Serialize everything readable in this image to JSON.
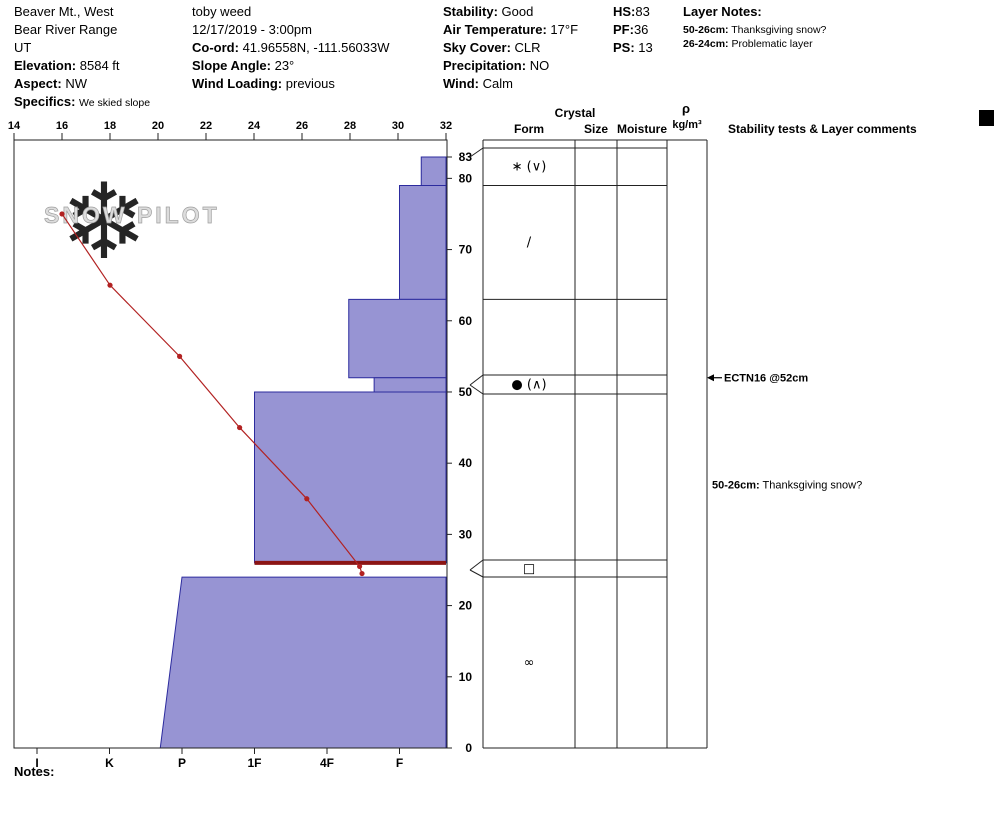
{
  "header": {
    "location": {
      "name": "Beaver Mt., West",
      "range": "Bear River Range",
      "state": "UT",
      "elevation_label": "Elevation:",
      "elevation_value": "8584 ft",
      "aspect_label": "Aspect:",
      "aspect_value": "NW",
      "specifics_label": "Specifics:",
      "specifics_value": "We skied slope"
    },
    "observation": {
      "observer": "toby weed",
      "datetime": "12/17/2019 - 3:00pm",
      "coord_label": "Co-ord:",
      "coord_value": "41.96558N, -111.56033W",
      "slope_angle_label": "Slope Angle:",
      "slope_angle_value": "23°",
      "wind_loading_label": "Wind Loading:",
      "wind_loading_value": "previous"
    },
    "conditions": {
      "stability_label": "Stability:",
      "stability_value": "Good",
      "air_temp_label": "Air Temperature:",
      "air_temp_value": "17°F",
      "sky_label": "Sky Cover:",
      "sky_value": "CLR",
      "precip_label": "Precipitation:",
      "precip_value": "NO",
      "wind_label": "Wind:",
      "wind_value": "Calm"
    },
    "summary": {
      "hs_label": "HS:",
      "hs_value": "83",
      "pf_label": "PF:",
      "pf_value": "36",
      "ps_label": "PS:",
      "ps_value": "13"
    },
    "layer_notes": {
      "title": "Layer Notes:",
      "notes": [
        {
          "range": "50-26cm:",
          "text": "Thanksgiving snow?"
        },
        {
          "range": "26-24cm:",
          "text": "Problematic layer"
        }
      ]
    }
  },
  "watermark": {
    "snowflake_glyph": "❄",
    "snowflake_color": "#cbdce8",
    "text": "SNOW PILOT"
  },
  "chart_data": {
    "type": "snow-profile",
    "title": "Snow pit hardness / temperature profile",
    "axes": {
      "temperature_f": {
        "ticks": [
          14,
          16,
          18,
          20,
          22,
          24,
          26,
          28,
          30,
          32
        ],
        "min": 14,
        "max": 32,
        "position": "top",
        "unit": "°F"
      },
      "hardness": {
        "ticks": [
          "I",
          "K",
          "P",
          "1F",
          "4F",
          "F"
        ],
        "position": "bottom"
      },
      "depth_cm": {
        "ticks": [
          83,
          80,
          70,
          60,
          50,
          40,
          30,
          20,
          10,
          0
        ],
        "max": 83,
        "position": "right",
        "unit": "cm"
      }
    },
    "temperature_profile": [
      {
        "temp_f": 16.0,
        "depth_cm": 75
      },
      {
        "temp_f": 18.0,
        "depth_cm": 65
      },
      {
        "temp_f": 20.9,
        "depth_cm": 55
      },
      {
        "temp_f": 23.4,
        "depth_cm": 45
      },
      {
        "temp_f": 26.2,
        "depth_cm": 35
      },
      {
        "temp_f": 28.4,
        "depth_cm": 25.5
      },
      {
        "temp_f": 28.5,
        "depth_cm": 24.5
      }
    ],
    "layers": [
      {
        "top_cm": 83,
        "bottom_cm": 79,
        "hardness": "F-",
        "h_top": 5.3,
        "h_bottom": 5.3,
        "form": "∗ (∨)"
      },
      {
        "top_cm": 79,
        "bottom_cm": 63,
        "hardness": "F",
        "h_top": 5.0,
        "h_bottom": 5.0,
        "form": "/"
      },
      {
        "top_cm": 63,
        "bottom_cm": 52,
        "hardness": "4F-",
        "h_top": 4.3,
        "h_bottom": 4.3,
        "form": ""
      },
      {
        "top_cm": 52,
        "bottom_cm": 50,
        "hardness": "F+",
        "h_top": 4.65,
        "h_bottom": 4.65,
        "form": "● (∧)"
      },
      {
        "top_cm": 50,
        "bottom_cm": 26,
        "hardness": "1F",
        "h_top": 3.0,
        "h_bottom": 3.0,
        "form": ""
      },
      {
        "top_cm": 26,
        "bottom_cm": 24,
        "hardness": "F-",
        "h_top": null,
        "h_bottom": null,
        "form": "□",
        "concern": true
      },
      {
        "top_cm": 24,
        "bottom_cm": 0,
        "hardness": "P",
        "h_top": 2.0,
        "h_bottom": 1.7,
        "form": "∞"
      }
    ],
    "layer_of_concern": {
      "depth_cm": 26,
      "color": "#8b1414"
    },
    "bar_fill": "#9794d3",
    "bar_stroke": "#2c2b9e",
    "temp_color": "#b22222"
  },
  "right_panel": {
    "headers": {
      "crystal": "Crystal",
      "form": "Form",
      "size": "Size",
      "moisture": "Moisture",
      "rho": "ρ",
      "rho_unit": "kg/m³",
      "stability": "Stability tests & Layer comments"
    },
    "tests": [
      {
        "label": "ECTN16 @52cm",
        "depth_cm": 52
      }
    ],
    "comments": [
      {
        "range": "50-26cm:",
        "text": "Thanksgiving snow?",
        "depth_cm": 37
      }
    ]
  },
  "notes_label": "Notes:"
}
